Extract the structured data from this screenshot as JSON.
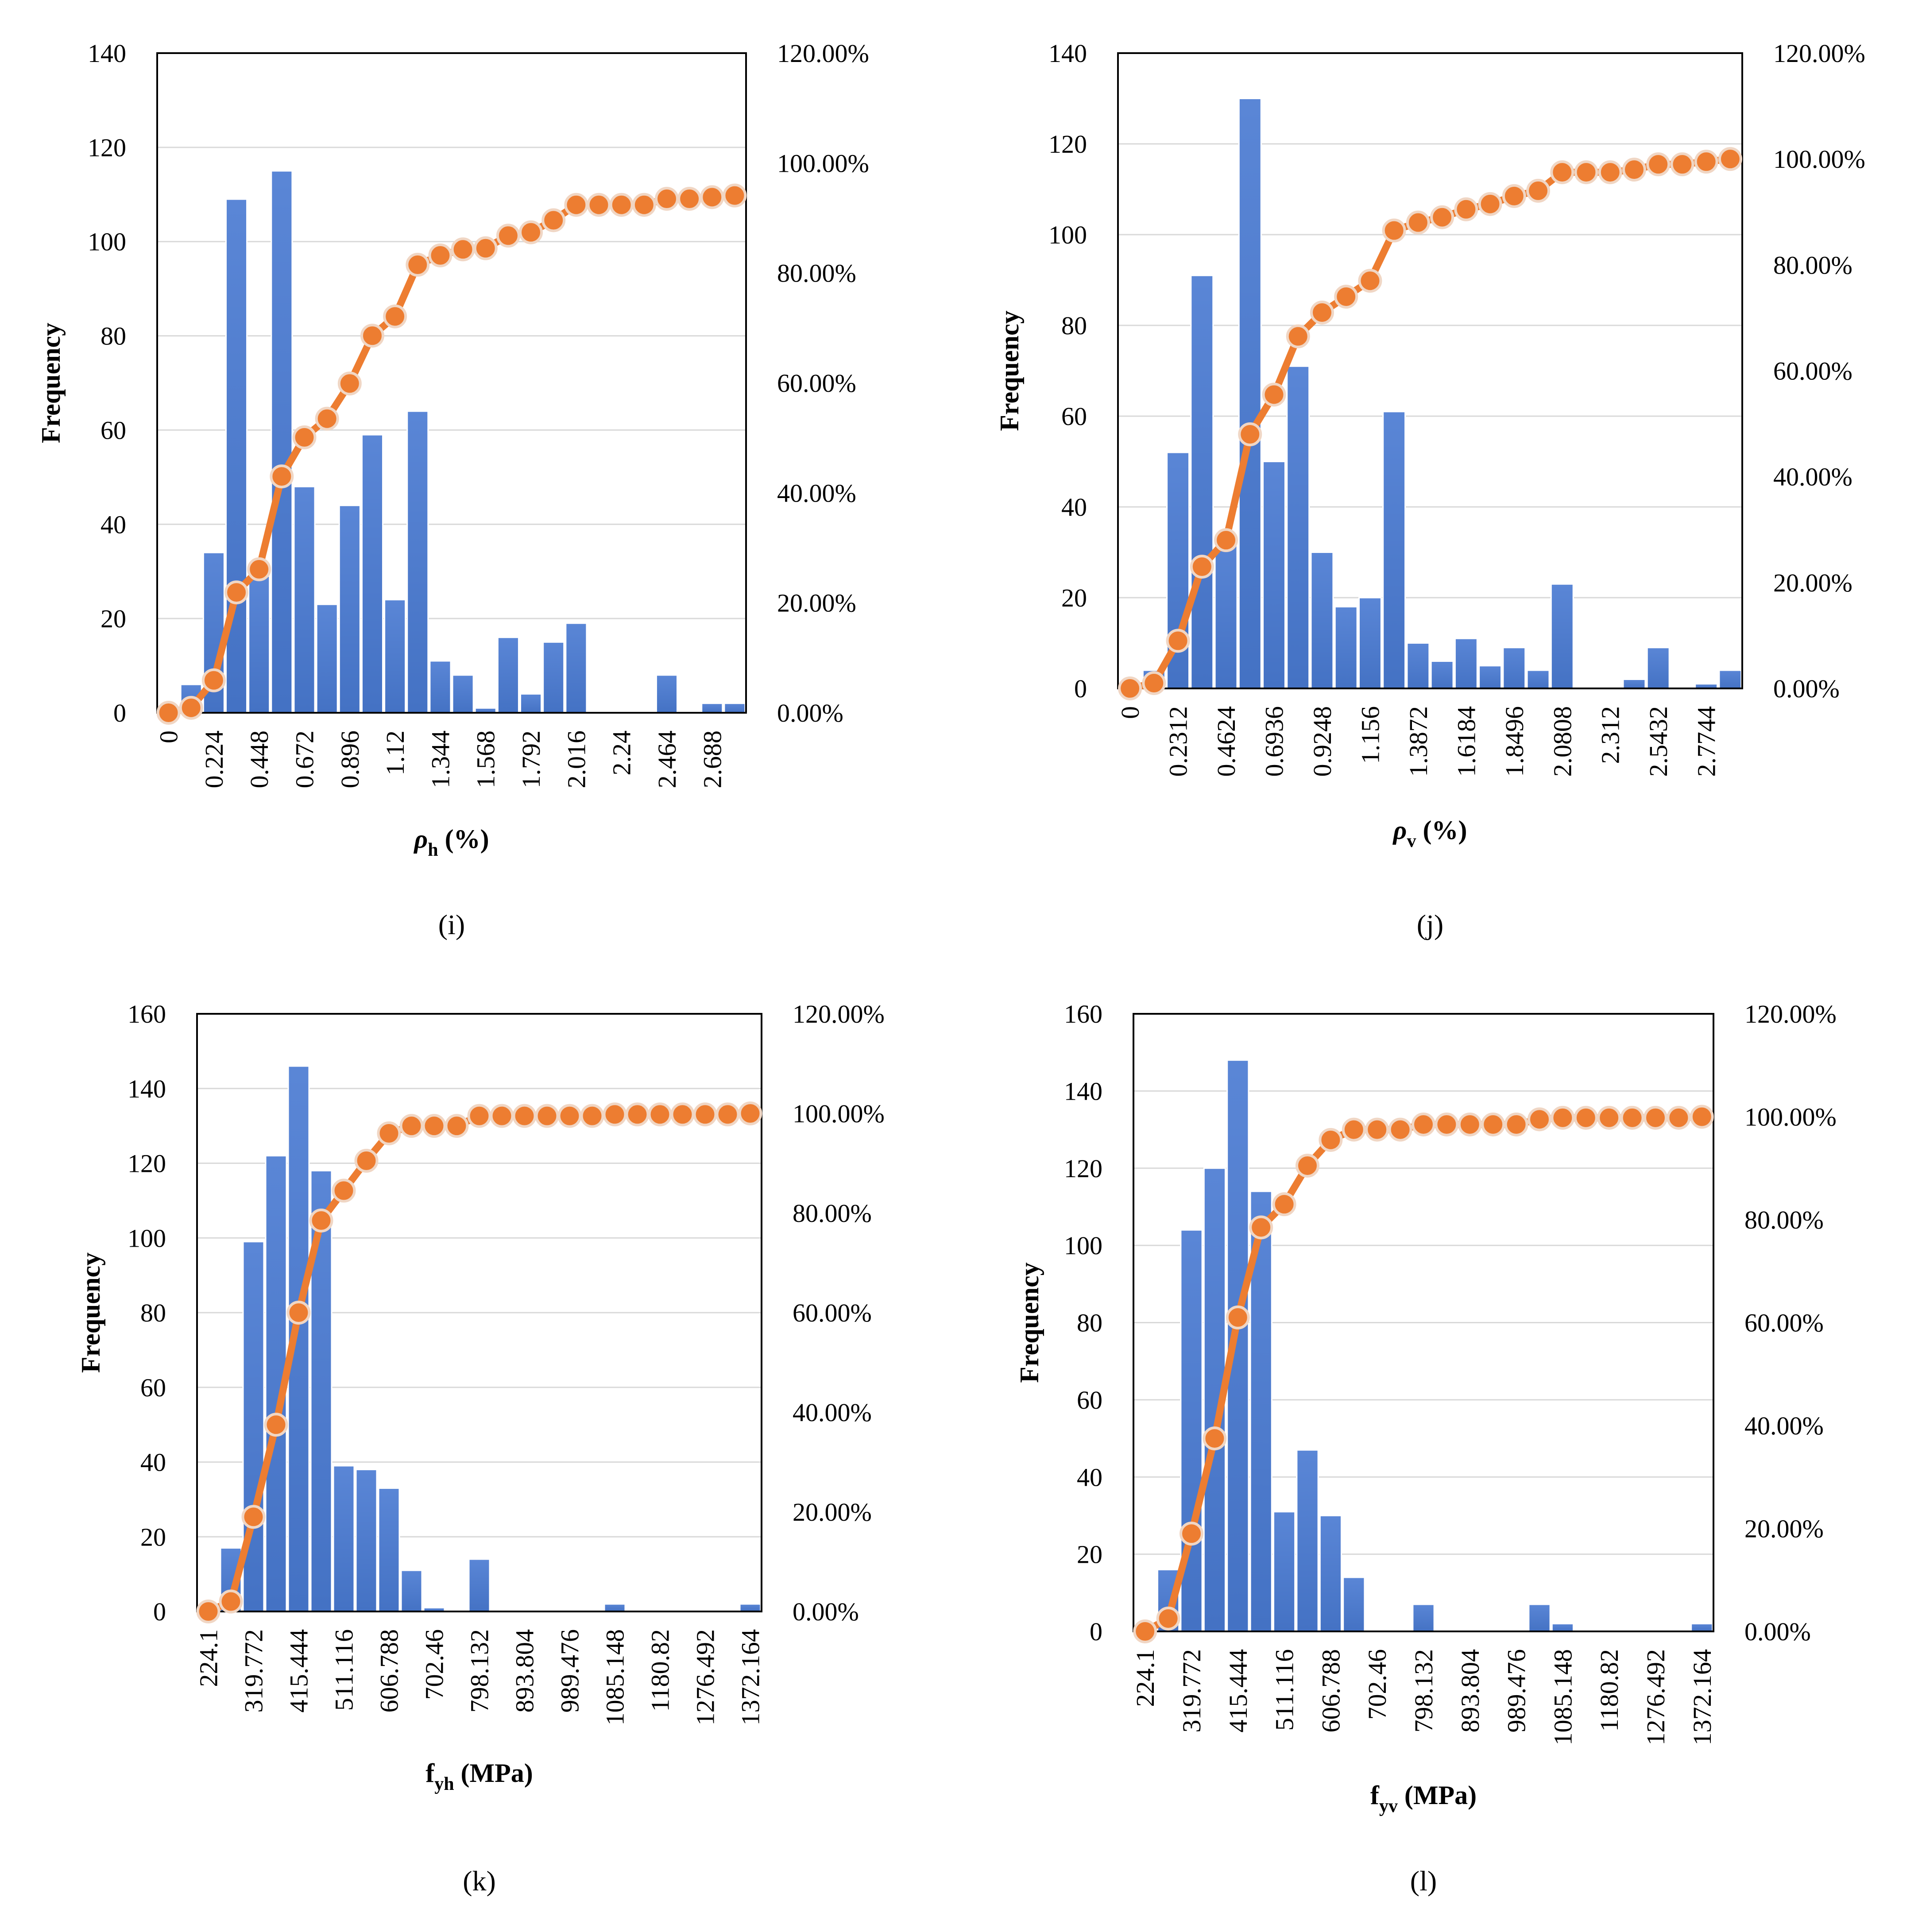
{
  "chart_data": [
    {
      "type": "bar",
      "panel": "(i)",
      "xlabel": "ρh (%)",
      "xlabel_main": "ρ",
      "xlabel_sub": "h",
      "xlabel_unit": " (%)",
      "ylabel": "Frequency",
      "ylim": [
        0,
        140
      ],
      "yticks": [
        "0",
        "20",
        "40",
        "60",
        "80",
        "100",
        "120",
        "140"
      ],
      "y2lim": [
        0,
        1.2
      ],
      "y2ticks": [
        "0.00%",
        "20.00%",
        "40.00%",
        "60.00%",
        "80.00%",
        "100.00%",
        "120.00%"
      ],
      "x_tick_labels": [
        "0",
        "0.224",
        "0.448",
        "0.672",
        "0.896",
        "1.12",
        "1.344",
        "1.568",
        "1.792",
        "2.016",
        "2.24",
        "2.464",
        "2.688"
      ],
      "series": [
        {
          "kind": "bar",
          "color": "#4472c4",
          "values": [
            0,
            6,
            34,
            109,
            29,
            115,
            48,
            23,
            44,
            59,
            24,
            64,
            11,
            8,
            1,
            16,
            4,
            15,
            19,
            0,
            0,
            0,
            8,
            0,
            2,
            2
          ]
        },
        {
          "kind": "line",
          "color": "#ed7d31",
          "values": [
            0,
            0.009,
            0.059,
            0.219,
            0.261,
            0.43,
            0.501,
            0.535,
            0.599,
            0.686,
            0.721,
            0.815,
            0.832,
            0.843,
            0.845,
            0.868,
            0.874,
            0.896,
            0.924,
            0.924,
            0.924,
            0.924,
            0.935,
            0.935,
            0.938,
            0.941
          ]
        }
      ]
    },
    {
      "type": "bar",
      "panel": "(j)",
      "xlabel": "ρv (%)",
      "xlabel_main": "ρ",
      "xlabel_sub": "v",
      "xlabel_unit": " (%)",
      "ylabel": "Frequency",
      "ylim": [
        0,
        140
      ],
      "yticks": [
        "0",
        "20",
        "40",
        "60",
        "80",
        "100",
        "120",
        "140"
      ],
      "y2lim": [
        0,
        1.2
      ],
      "y2ticks": [
        "0.00%",
        "20.00%",
        "40.00%",
        "60.00%",
        "80.00%",
        "100.00%",
        "120.00%"
      ],
      "x_tick_labels": [
        "0",
        "0.2312",
        "0.4624",
        "0.6936",
        "0.9248",
        "1.156",
        "1.3872",
        "1.6184",
        "1.8496",
        "2.0808",
        "2.312",
        "2.5432",
        "2.7744"
      ],
      "series": [
        {
          "kind": "bar",
          "color": "#4472c4",
          "values": [
            0,
            4,
            52,
            91,
            34,
            130,
            50,
            71,
            30,
            18,
            20,
            61,
            10,
            6,
            11,
            5,
            9,
            4,
            23,
            0,
            0,
            2,
            9,
            0,
            1,
            4
          ]
        },
        {
          "kind": "line",
          "color": "#ed7d31",
          "values": [
            0,
            0.01,
            0.09,
            0.23,
            0.28,
            0.48,
            0.555,
            0.665,
            0.71,
            0.74,
            0.77,
            0.865,
            0.88,
            0.89,
            0.905,
            0.915,
            0.93,
            0.94,
            0.975,
            0.975,
            0.975,
            0.98,
            0.99,
            0.99,
            0.995,
            1.0
          ]
        }
      ]
    },
    {
      "type": "bar",
      "panel": "(k)",
      "xlabel": "fyh (MPa)",
      "xlabel_main": "f",
      "xlabel_sub": "yh",
      "xlabel_unit": " (MPa)",
      "ylabel": "Frequency",
      "ylim": [
        0,
        160
      ],
      "yticks": [
        "0",
        "20",
        "40",
        "60",
        "80",
        "100",
        "120",
        "140",
        "160"
      ],
      "y2lim": [
        0,
        1.2
      ],
      "y2ticks": [
        "0.00%",
        "20.00%",
        "40.00%",
        "60.00%",
        "80.00%",
        "100.00%",
        "120.00%"
      ],
      "x_tick_labels": [
        "224.1",
        "319.772",
        "415.444",
        "511.116",
        "606.788",
        "702.46",
        "798.132",
        "893.804",
        "989.476",
        "1085.148",
        "1180.82",
        "1276.492",
        "1372.164"
      ],
      "series": [
        {
          "kind": "bar",
          "color": "#4472c4",
          "values": [
            0,
            17,
            99,
            122,
            146,
            118,
            39,
            38,
            33,
            11,
            1,
            0,
            14,
            0,
            0,
            0,
            0,
            0,
            2,
            0,
            0,
            0,
            0,
            0,
            2
          ]
        },
        {
          "kind": "line",
          "color": "#ed7d31",
          "values": [
            0,
            0.02,
            0.19,
            0.375,
            0.6,
            0.785,
            0.845,
            0.905,
            0.96,
            0.975,
            0.975,
            0.975,
            0.995,
            0.995,
            0.995,
            0.995,
            0.995,
            0.995,
            0.998,
            0.998,
            0.998,
            0.998,
            0.998,
            0.998,
            1.0
          ]
        }
      ]
    },
    {
      "type": "bar",
      "panel": "(l)",
      "xlabel": "fyv (MPa)",
      "xlabel_main": "f",
      "xlabel_sub": "yv",
      "xlabel_unit": " (MPa)",
      "ylabel": "Frequency",
      "ylim": [
        0,
        160
      ],
      "yticks": [
        "0",
        "20",
        "40",
        "60",
        "80",
        "100",
        "120",
        "140",
        "160"
      ],
      "y2lim": [
        0,
        1.2
      ],
      "y2ticks": [
        "0.00%",
        "20.00%",
        "40.00%",
        "60.00%",
        "80.00%",
        "100.00%",
        "120.00%"
      ],
      "x_tick_labels": [
        "224.1",
        "319.772",
        "415.444",
        "511.116",
        "606.788",
        "702.46",
        "798.132",
        "893.804",
        "989.476",
        "1085.148",
        "1180.82",
        "1276.492",
        "1372.164"
      ],
      "series": [
        {
          "kind": "bar",
          "color": "#4472c4",
          "values": [
            0,
            16,
            104,
            120,
            148,
            114,
            31,
            47,
            30,
            14,
            0,
            0,
            7,
            0,
            0,
            0,
            0,
            7,
            2,
            0,
            0,
            0,
            0,
            0,
            2
          ]
        },
        {
          "kind": "line",
          "color": "#ed7d31",
          "values": [
            0,
            0.025,
            0.19,
            0.375,
            0.61,
            0.785,
            0.83,
            0.905,
            0.955,
            0.975,
            0.975,
            0.975,
            0.985,
            0.985,
            0.985,
            0.985,
            0.985,
            0.995,
            0.998,
            0.998,
            0.998,
            0.998,
            0.998,
            0.998,
            1.0
          ]
        }
      ]
    }
  ]
}
